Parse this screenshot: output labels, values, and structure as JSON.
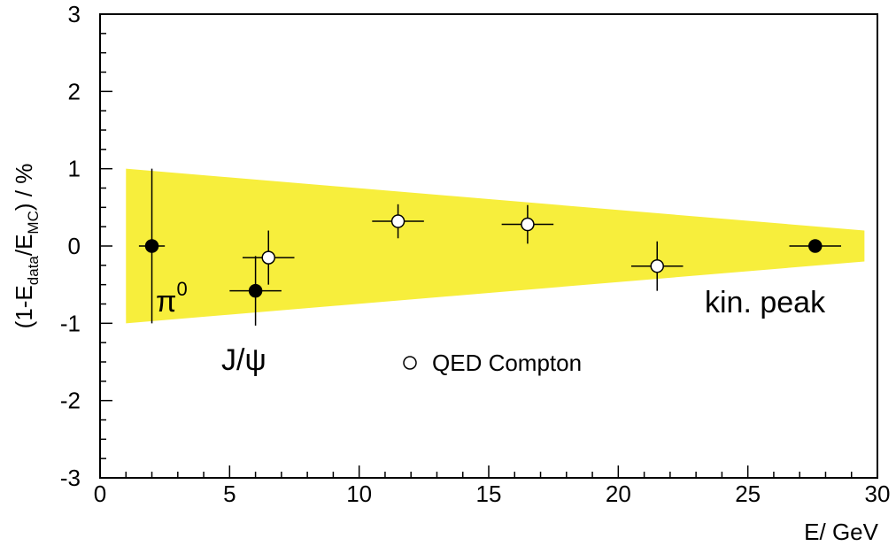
{
  "chart_data": {
    "type": "scatter",
    "title": "",
    "xlabel": "E/ GeV",
    "ylabel_parts": {
      "prefix": "(1-E",
      "sub1": "data",
      "mid": "/E",
      "sub2": "MC",
      "suffix": ") / %"
    },
    "xlim": [
      0,
      30
    ],
    "ylim": [
      -3,
      3
    ],
    "x_ticks": [
      0,
      5,
      10,
      15,
      20,
      25,
      30
    ],
    "x_tick_labels": [
      "0",
      "5",
      "10",
      "15",
      "20",
      "25",
      "30"
    ],
    "y_ticks": [
      -3,
      -2,
      -1,
      0,
      1,
      2,
      3
    ],
    "y_tick_labels": [
      "-3",
      "-2",
      "-1",
      "0",
      "1",
      "2",
      "3"
    ],
    "band": {
      "color": "#f7ee3c",
      "points": [
        [
          1,
          1.0
        ],
        [
          29.5,
          0.2
        ],
        [
          29.5,
          -0.2
        ],
        [
          1,
          -1.0
        ]
      ]
    },
    "series": [
      {
        "marker": "filled-circle",
        "points": [
          {
            "x": 2.0,
            "y": 0.0,
            "xerr": 0.5,
            "yerr": 1.0
          },
          {
            "x": 6.0,
            "y": -0.58,
            "xerr": 1.0,
            "yerr": 0.45
          },
          {
            "x": 27.6,
            "y": 0.0,
            "xerr": 1.0,
            "yerr": 0.05
          }
        ]
      },
      {
        "name": "QED Compton",
        "marker": "open-circle",
        "points": [
          {
            "x": 6.5,
            "y": -0.15,
            "xerr": 1.0,
            "yerr": 0.35
          },
          {
            "x": 11.5,
            "y": 0.32,
            "xerr": 1.0,
            "yerr": 0.22
          },
          {
            "x": 16.5,
            "y": 0.28,
            "xerr": 1.0,
            "yerr": 0.25
          },
          {
            "x": 21.5,
            "y": -0.26,
            "xerr": 1.0,
            "yerr": 0.32
          }
        ]
      }
    ],
    "annotations": {
      "pi0_base": "π",
      "pi0_sup": "0",
      "jpsi": "J/ψ",
      "kin_peak": "kin. peak"
    },
    "legend": {
      "label": "QED Compton",
      "placement": "lower-center"
    }
  }
}
